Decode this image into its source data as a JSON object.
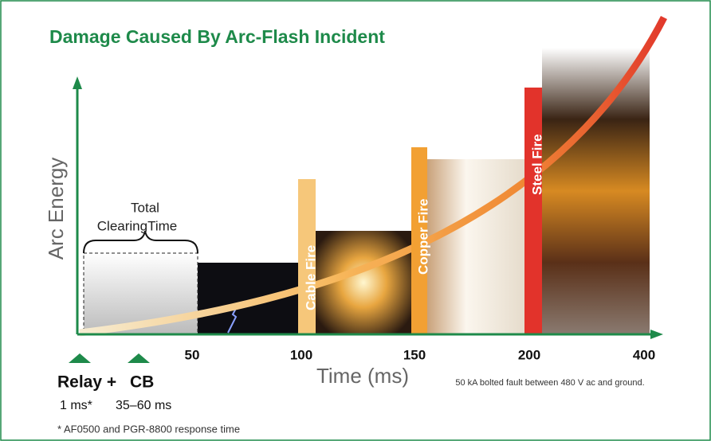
{
  "title": "Damage Caused By Arc-Flash Incident",
  "y_axis_label": "Arc Energy",
  "x_axis_label": "Time (ms)",
  "x_tick_labels": [
    "50",
    "100",
    "150",
    "200",
    "400"
  ],
  "bracket": {
    "line1": "Total",
    "line2": "ClearingTime"
  },
  "fire_bars": [
    "Cable Fire",
    "Copper Fire",
    "Steel Fire"
  ],
  "markers": [
    {
      "label": "Relay +",
      "time": "1 ms*"
    },
    {
      "label": "CB",
      "time": "35–60 ms"
    }
  ],
  "note": "50 kA bolted fault between 480 V ac and ground.",
  "footnote": "* AF0500 and PGR-8800 response time"
}
